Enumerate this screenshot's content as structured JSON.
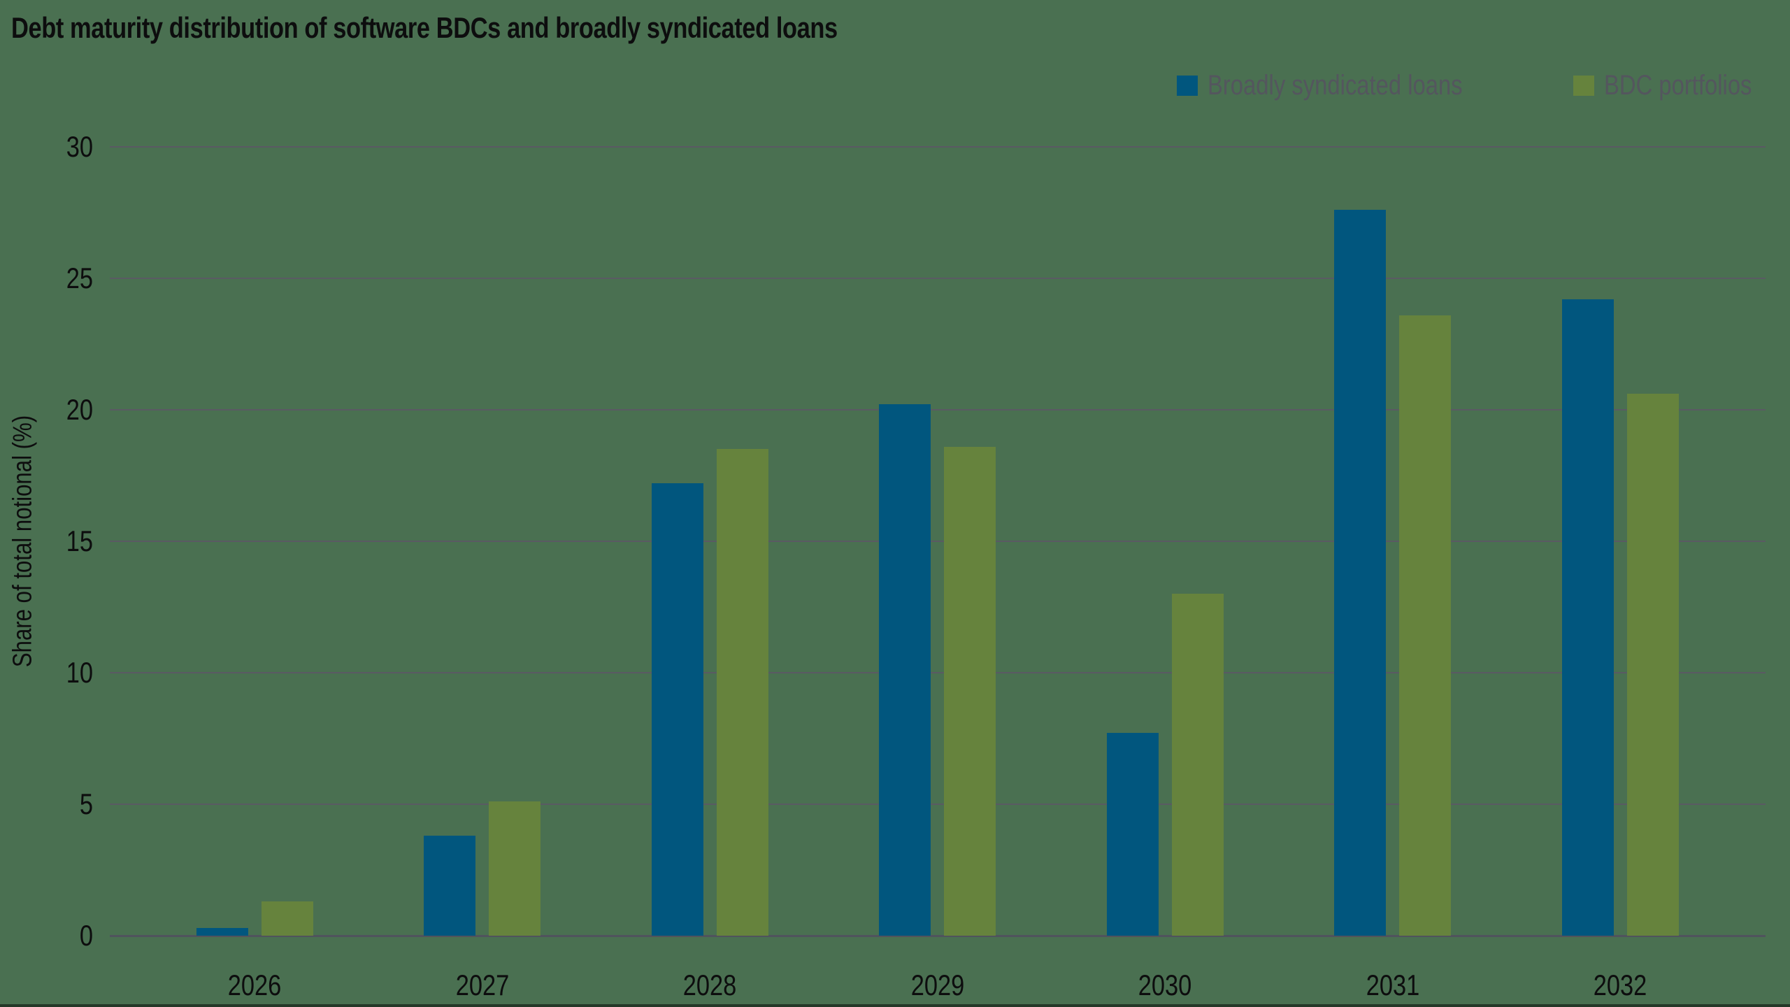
{
  "title": "Debt maturity distribution of software BDCs and broadly syndicated loans",
  "colors": {
    "background": "#4A7051",
    "broadly_syndicated_loans": "#01567E",
    "bdc_portfolios": "#66833D",
    "gridline": "#5A5A63",
    "zero_line": "#50535D",
    "text": "#0D0D0E",
    "legend_text": "#54565E"
  },
  "chart_data": {
    "type": "bar",
    "title": "Debt maturity distribution of software BDCs and broadly syndicated loans",
    "categories": [
      "2026",
      "2027",
      "2028",
      "2029",
      "2030",
      "2031",
      "2032"
    ],
    "series": [
      {
        "name": "Broadly syndicated loans",
        "color": "#01567E",
        "values": [
          0.3,
          3.8,
          17.2,
          20.2,
          7.7,
          27.6,
          24.2
        ]
      },
      {
        "name": "BDC portfolios",
        "color": "#66833D",
        "values": [
          1.3,
          5.1,
          18.5,
          18.6,
          13.0,
          23.6,
          20.6
        ]
      }
    ],
    "xlabel": "",
    "ylabel": "Share of total notional (%)",
    "yticks": [
      0,
      5,
      10,
      15,
      20,
      25,
      30
    ],
    "ylim": [
      0,
      30
    ],
    "grid": true,
    "legend_position": "top-right"
  }
}
